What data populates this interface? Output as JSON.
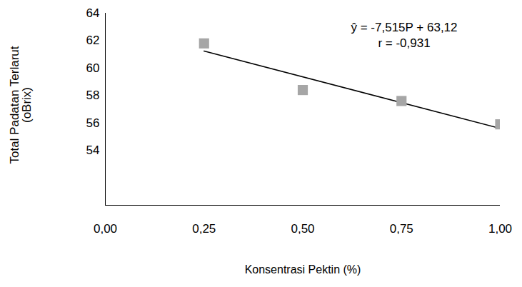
{
  "chart_data": {
    "type": "scatter",
    "x_label": "Konsentrasi Pektin (%)",
    "y_label": [
      "Total Padatan Terlarut",
      "(oBrix)"
    ],
    "annotations": [
      "ŷ = -7,515P + 63,12",
      "r = -0,931"
    ],
    "x": [
      0.25,
      0.5,
      0.75,
      1.0
    ],
    "values": [
      61.8,
      58.4,
      57.6,
      55.9
    ],
    "color": "#a6a6a6",
    "marker": "square",
    "trendline": {
      "x": [
        0.25,
        1.0
      ],
      "values": [
        61.24,
        55.6
      ],
      "color": "#000000",
      "line_style": "solid"
    },
    "xlim": [
      0,
      1
    ],
    "xticks": [
      {
        "value": 0,
        "label": "0,00"
      },
      {
        "value": 0.25,
        "label": "0,25"
      },
      {
        "value": 0.5,
        "label": "0,50"
      },
      {
        "value": 0.75,
        "label": "0,75"
      },
      {
        "value": 1,
        "label": "1,00"
      }
    ],
    "ylim": [
      50,
      64
    ],
    "yticks": [
      54,
      56,
      58,
      60,
      62,
      64
    ],
    "grid": false
  }
}
